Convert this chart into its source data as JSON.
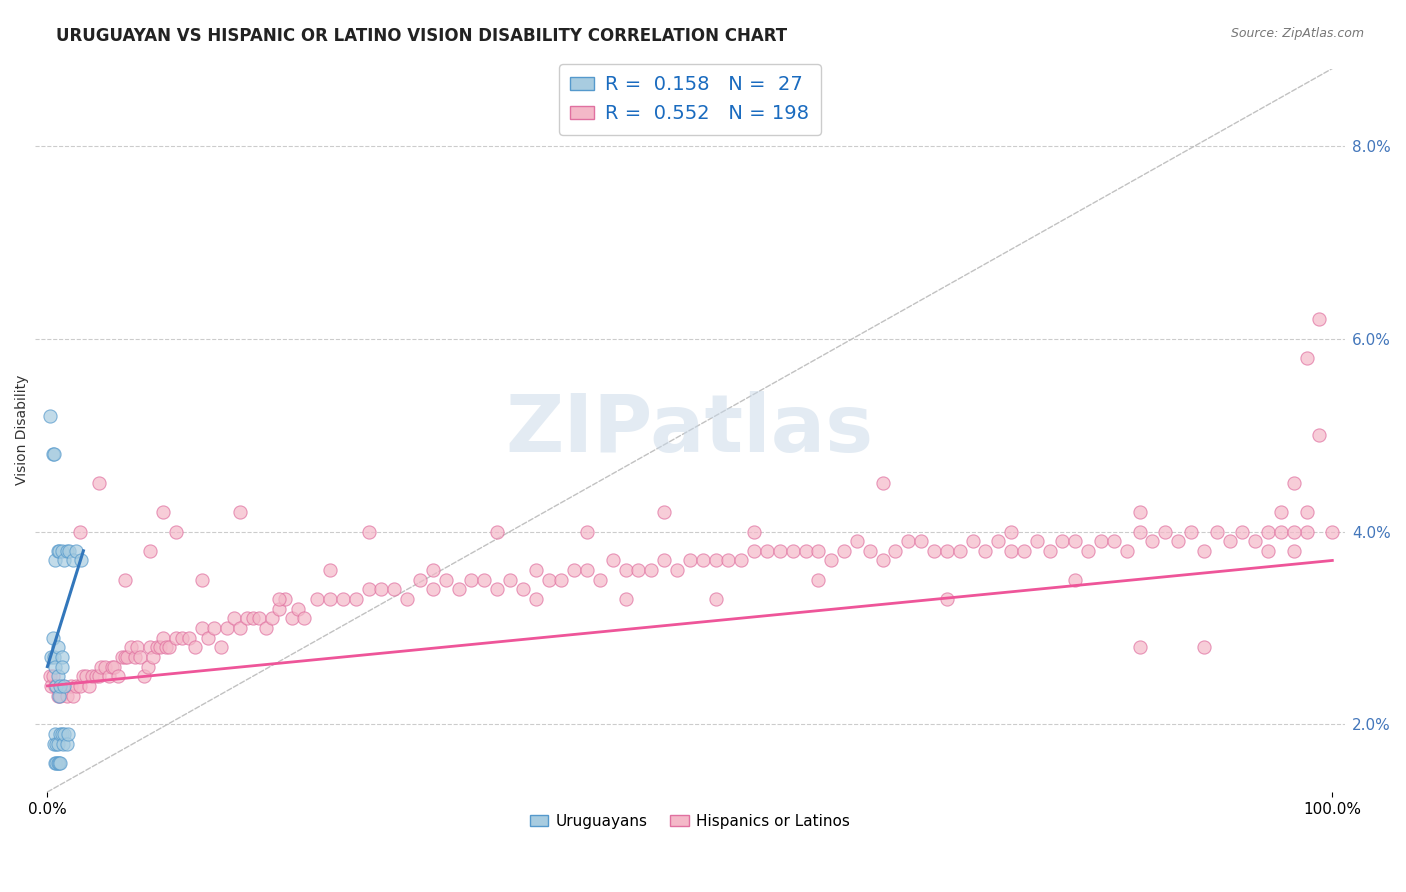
{
  "title": "URUGUAYAN VS HISPANIC OR LATINO VISION DISABILITY CORRELATION CHART",
  "source_text": "Source: ZipAtlas.com",
  "ylabel": "Vision Disability",
  "watermark": "ZIPatlas",
  "R1": 0.158,
  "N1": 27,
  "R2": 0.552,
  "N2": 198,
  "xlim": [
    -0.01,
    1.01
  ],
  "ylim": [
    0.013,
    0.088
  ],
  "yticks": [
    0.02,
    0.04,
    0.06,
    0.08
  ],
  "ytick_labels": [
    "2.0%",
    "4.0%",
    "6.0%",
    "8.0%"
  ],
  "xtick_labels": [
    "0.0%",
    "100.0%"
  ],
  "legend_labels": [
    "Uruguayans",
    "Hispanics or Latinos"
  ],
  "blue_color": "#a8cce0",
  "pink_color": "#f4b8c8",
  "blue_edge_color": "#5599cc",
  "pink_edge_color": "#e070a0",
  "blue_line_color": "#3377bb",
  "pink_line_color": "#ee5599",
  "diag_line_color": "#bbbbbb",
  "title_fontsize": 12,
  "source_fontsize": 9,
  "axis_label_fontsize": 10,
  "tick_fontsize": 11,
  "legend_fontsize": 14,
  "scatter_alpha": 0.7,
  "scatter_blue": [
    [
      0.003,
      0.027
    ],
    [
      0.004,
      0.029
    ],
    [
      0.005,
      0.027
    ],
    [
      0.006,
      0.026
    ],
    [
      0.007,
      0.024
    ],
    [
      0.008,
      0.025
    ],
    [
      0.008,
      0.028
    ],
    [
      0.009,
      0.023
    ],
    [
      0.01,
      0.024
    ],
    [
      0.011,
      0.027
    ],
    [
      0.011,
      0.026
    ],
    [
      0.013,
      0.024
    ],
    [
      0.006,
      0.037
    ],
    [
      0.008,
      0.038
    ],
    [
      0.009,
      0.038
    ],
    [
      0.011,
      0.038
    ],
    [
      0.013,
      0.037
    ],
    [
      0.015,
      0.038
    ],
    [
      0.017,
      0.038
    ],
    [
      0.02,
      0.037
    ],
    [
      0.022,
      0.038
    ],
    [
      0.026,
      0.037
    ],
    [
      0.002,
      0.052
    ],
    [
      0.004,
      0.048
    ],
    [
      0.005,
      0.048
    ],
    [
      0.005,
      0.018
    ],
    [
      0.006,
      0.019
    ],
    [
      0.007,
      0.018
    ],
    [
      0.008,
      0.018
    ],
    [
      0.01,
      0.019
    ],
    [
      0.011,
      0.019
    ],
    [
      0.012,
      0.018
    ],
    [
      0.013,
      0.019
    ],
    [
      0.015,
      0.018
    ],
    [
      0.016,
      0.019
    ],
    [
      0.006,
      0.016
    ],
    [
      0.007,
      0.016
    ],
    [
      0.008,
      0.016
    ],
    [
      0.009,
      0.016
    ],
    [
      0.01,
      0.016
    ]
  ],
  "scatter_pink": [
    [
      0.002,
      0.025
    ],
    [
      0.003,
      0.024
    ],
    [
      0.004,
      0.025
    ],
    [
      0.006,
      0.024
    ],
    [
      0.008,
      0.023
    ],
    [
      0.01,
      0.023
    ],
    [
      0.012,
      0.024
    ],
    [
      0.015,
      0.023
    ],
    [
      0.018,
      0.024
    ],
    [
      0.02,
      0.023
    ],
    [
      0.022,
      0.024
    ],
    [
      0.025,
      0.024
    ],
    [
      0.028,
      0.025
    ],
    [
      0.03,
      0.025
    ],
    [
      0.032,
      0.024
    ],
    [
      0.035,
      0.025
    ],
    [
      0.038,
      0.025
    ],
    [
      0.04,
      0.025
    ],
    [
      0.042,
      0.026
    ],
    [
      0.045,
      0.026
    ],
    [
      0.048,
      0.025
    ],
    [
      0.05,
      0.026
    ],
    [
      0.052,
      0.026
    ],
    [
      0.055,
      0.025
    ],
    [
      0.058,
      0.027
    ],
    [
      0.06,
      0.027
    ],
    [
      0.062,
      0.027
    ],
    [
      0.065,
      0.028
    ],
    [
      0.068,
      0.027
    ],
    [
      0.07,
      0.028
    ],
    [
      0.072,
      0.027
    ],
    [
      0.075,
      0.025
    ],
    [
      0.078,
      0.026
    ],
    [
      0.08,
      0.028
    ],
    [
      0.082,
      0.027
    ],
    [
      0.085,
      0.028
    ],
    [
      0.088,
      0.028
    ],
    [
      0.09,
      0.029
    ],
    [
      0.092,
      0.028
    ],
    [
      0.095,
      0.028
    ],
    [
      0.1,
      0.029
    ],
    [
      0.105,
      0.029
    ],
    [
      0.11,
      0.029
    ],
    [
      0.115,
      0.028
    ],
    [
      0.12,
      0.03
    ],
    [
      0.125,
      0.029
    ],
    [
      0.13,
      0.03
    ],
    [
      0.135,
      0.028
    ],
    [
      0.14,
      0.03
    ],
    [
      0.145,
      0.031
    ],
    [
      0.15,
      0.03
    ],
    [
      0.155,
      0.031
    ],
    [
      0.16,
      0.031
    ],
    [
      0.165,
      0.031
    ],
    [
      0.17,
      0.03
    ],
    [
      0.175,
      0.031
    ],
    [
      0.18,
      0.032
    ],
    [
      0.185,
      0.033
    ],
    [
      0.19,
      0.031
    ],
    [
      0.195,
      0.032
    ],
    [
      0.2,
      0.031
    ],
    [
      0.21,
      0.033
    ],
    [
      0.22,
      0.033
    ],
    [
      0.23,
      0.033
    ],
    [
      0.24,
      0.033
    ],
    [
      0.25,
      0.034
    ],
    [
      0.26,
      0.034
    ],
    [
      0.27,
      0.034
    ],
    [
      0.28,
      0.033
    ],
    [
      0.29,
      0.035
    ],
    [
      0.3,
      0.034
    ],
    [
      0.31,
      0.035
    ],
    [
      0.32,
      0.034
    ],
    [
      0.33,
      0.035
    ],
    [
      0.34,
      0.035
    ],
    [
      0.35,
      0.034
    ],
    [
      0.36,
      0.035
    ],
    [
      0.37,
      0.034
    ],
    [
      0.38,
      0.036
    ],
    [
      0.39,
      0.035
    ],
    [
      0.4,
      0.035
    ],
    [
      0.41,
      0.036
    ],
    [
      0.42,
      0.036
    ],
    [
      0.43,
      0.035
    ],
    [
      0.44,
      0.037
    ],
    [
      0.45,
      0.036
    ],
    [
      0.46,
      0.036
    ],
    [
      0.47,
      0.036
    ],
    [
      0.48,
      0.037
    ],
    [
      0.49,
      0.036
    ],
    [
      0.5,
      0.037
    ],
    [
      0.51,
      0.037
    ],
    [
      0.52,
      0.037
    ],
    [
      0.53,
      0.037
    ],
    [
      0.54,
      0.037
    ],
    [
      0.55,
      0.038
    ],
    [
      0.56,
      0.038
    ],
    [
      0.57,
      0.038
    ],
    [
      0.58,
      0.038
    ],
    [
      0.59,
      0.038
    ],
    [
      0.6,
      0.038
    ],
    [
      0.61,
      0.037
    ],
    [
      0.62,
      0.038
    ],
    [
      0.63,
      0.039
    ],
    [
      0.64,
      0.038
    ],
    [
      0.65,
      0.037
    ],
    [
      0.66,
      0.038
    ],
    [
      0.67,
      0.039
    ],
    [
      0.68,
      0.039
    ],
    [
      0.69,
      0.038
    ],
    [
      0.7,
      0.038
    ],
    [
      0.71,
      0.038
    ],
    [
      0.72,
      0.039
    ],
    [
      0.73,
      0.038
    ],
    [
      0.74,
      0.039
    ],
    [
      0.75,
      0.038
    ],
    [
      0.76,
      0.038
    ],
    [
      0.77,
      0.039
    ],
    [
      0.78,
      0.038
    ],
    [
      0.79,
      0.039
    ],
    [
      0.8,
      0.039
    ],
    [
      0.81,
      0.038
    ],
    [
      0.82,
      0.039
    ],
    [
      0.83,
      0.039
    ],
    [
      0.84,
      0.038
    ],
    [
      0.85,
      0.04
    ],
    [
      0.86,
      0.039
    ],
    [
      0.87,
      0.04
    ],
    [
      0.88,
      0.039
    ],
    [
      0.89,
      0.04
    ],
    [
      0.9,
      0.038
    ],
    [
      0.91,
      0.04
    ],
    [
      0.92,
      0.039
    ],
    [
      0.93,
      0.04
    ],
    [
      0.94,
      0.039
    ],
    [
      0.95,
      0.04
    ],
    [
      0.96,
      0.04
    ],
    [
      0.97,
      0.038
    ],
    [
      0.98,
      0.04
    ],
    [
      0.025,
      0.04
    ],
    [
      0.04,
      0.045
    ],
    [
      0.06,
      0.035
    ],
    [
      0.08,
      0.038
    ],
    [
      0.09,
      0.042
    ],
    [
      0.1,
      0.04
    ],
    [
      0.12,
      0.035
    ],
    [
      0.15,
      0.042
    ],
    [
      0.18,
      0.033
    ],
    [
      0.22,
      0.036
    ],
    [
      0.25,
      0.04
    ],
    [
      0.3,
      0.036
    ],
    [
      0.35,
      0.04
    ],
    [
      0.38,
      0.033
    ],
    [
      0.42,
      0.04
    ],
    [
      0.45,
      0.033
    ],
    [
      0.48,
      0.042
    ],
    [
      0.52,
      0.033
    ],
    [
      0.55,
      0.04
    ],
    [
      0.6,
      0.035
    ],
    [
      0.65,
      0.045
    ],
    [
      0.7,
      0.033
    ],
    [
      0.75,
      0.04
    ],
    [
      0.8,
      0.035
    ],
    [
      0.85,
      0.042
    ],
    [
      0.9,
      0.028
    ],
    [
      0.95,
      0.038
    ],
    [
      1.0,
      0.04
    ],
    [
      0.97,
      0.045
    ],
    [
      0.98,
      0.042
    ],
    [
      0.99,
      0.062
    ],
    [
      0.98,
      0.058
    ],
    [
      0.97,
      0.04
    ],
    [
      0.96,
      0.042
    ],
    [
      0.99,
      0.05
    ],
    [
      0.85,
      0.028
    ]
  ],
  "blue_line_x": [
    0.0,
    0.028
  ],
  "blue_line_y": [
    0.026,
    0.038
  ],
  "pink_line_x": [
    0.0,
    1.0
  ],
  "pink_line_y": [
    0.024,
    0.037
  ]
}
